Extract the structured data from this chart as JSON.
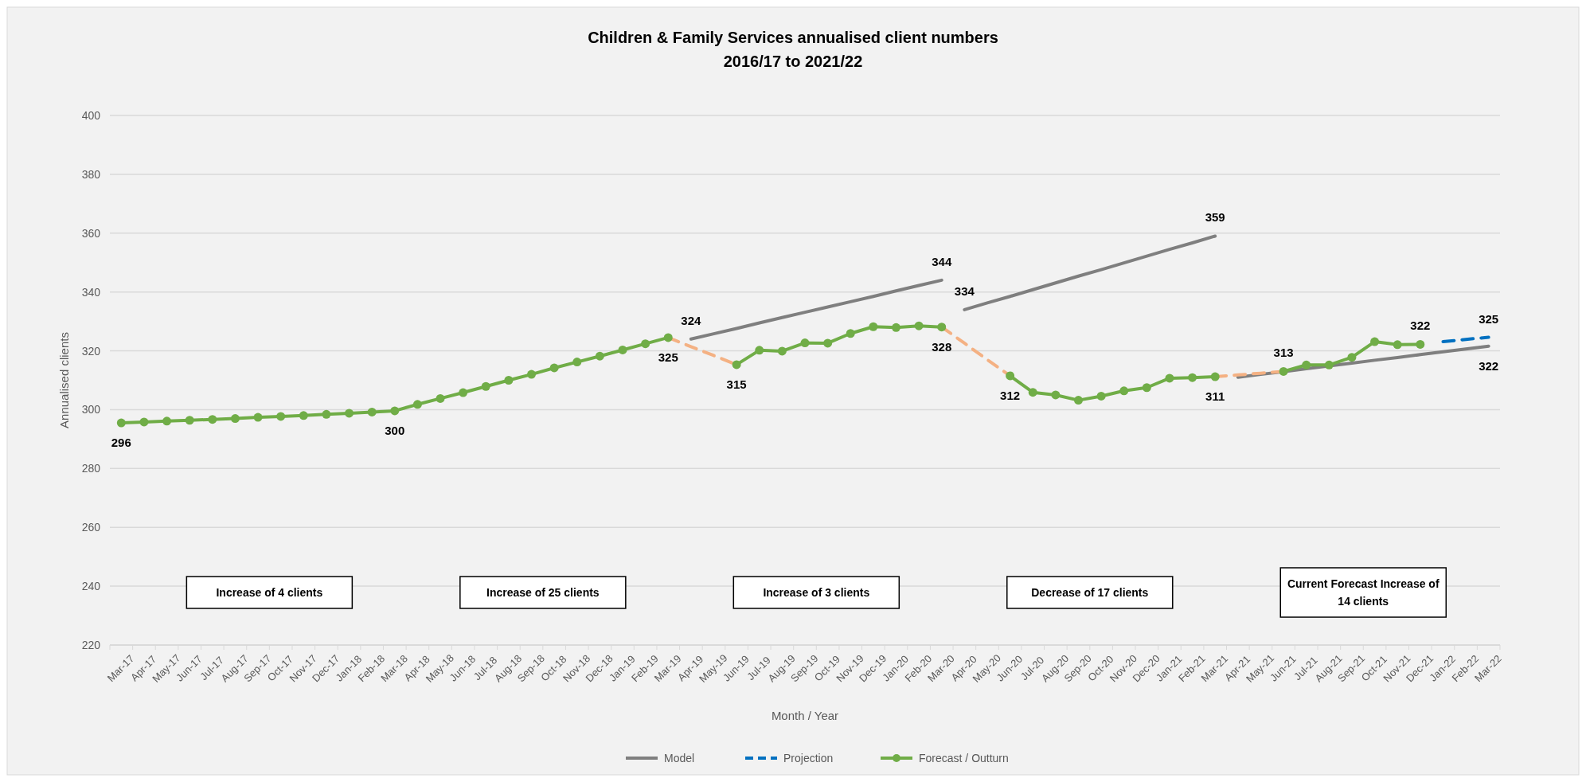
{
  "chart_data": {
    "type": "line",
    "title": "Children & Family Services annualised client numbers",
    "subtitle": "2016/17 to 2021/22",
    "xlabel": "Month / Year",
    "ylabel": "Annualised clients",
    "categories": [
      "Mar-17",
      "Apr-17",
      "May-17",
      "Jun-17",
      "Jul-17",
      "Aug-17",
      "Sep-17",
      "Oct-17",
      "Nov-17",
      "Dec-17",
      "Jan-18",
      "Feb-18",
      "Mar-18",
      "Apr-18",
      "May-18",
      "Jun-18",
      "Jul-18",
      "Aug-18",
      "Sep-18",
      "Oct-18",
      "Nov-18",
      "Dec-18",
      "Jan-19",
      "Feb-19",
      "Mar-19",
      "Apr-19",
      "May-19",
      "Jun-19",
      "Jul-19",
      "Aug-19",
      "Sep-19",
      "Oct-19",
      "Nov-19",
      "Dec-19",
      "Jan-20",
      "Feb-20",
      "Mar-20",
      "Apr-20",
      "May-20",
      "Jun-20",
      "Jul-20",
      "Aug-20",
      "Sep-20",
      "Oct-20",
      "Nov-20",
      "Dec-20",
      "Jan-21",
      "Feb-21",
      "Mar-21",
      "Apr-21",
      "May-21",
      "Jun-21",
      "Jul-21",
      "Aug-21",
      "Sep-21",
      "Oct-21",
      "Nov-21",
      "Dec-21",
      "Jan-22",
      "Feb-22",
      "Mar-22"
    ],
    "ylim": [
      220,
      400
    ],
    "yticks": [
      220,
      240,
      260,
      280,
      300,
      320,
      340,
      360,
      380,
      400
    ],
    "grid": "y",
    "legend": "bottom",
    "series": [
      {
        "name": "Model",
        "color": "#7f7f7f",
        "line_style": "solid",
        "marker": "none",
        "values": [
          null,
          null,
          null,
          null,
          null,
          null,
          null,
          null,
          null,
          null,
          null,
          null,
          null,
          null,
          null,
          null,
          null,
          null,
          null,
          null,
          null,
          null,
          null,
          null,
          null,
          324,
          325.8,
          327.6,
          329.5,
          331.3,
          333.1,
          334.9,
          336.7,
          338.5,
          340.4,
          342.2,
          344,
          null,
          null,
          null,
          null,
          null,
          null,
          null,
          null,
          null,
          null,
          null,
          null,
          null,
          null,
          null,
          null,
          null,
          null,
          null,
          null,
          null,
          null,
          null,
          null
        ],
        "value_labels": [
          null,
          null,
          null,
          null,
          null,
          null,
          null,
          null,
          null,
          null,
          null,
          null,
          null,
          null,
          null,
          null,
          null,
          null,
          null,
          null,
          null,
          null,
          null,
          null,
          null,
          "324",
          null,
          null,
          null,
          null,
          null,
          null,
          null,
          null,
          null,
          null,
          "344",
          null,
          null,
          null,
          null,
          null,
          null,
          null,
          null,
          null,
          null,
          null,
          null,
          null,
          null,
          null,
          null,
          null,
          null,
          null,
          null,
          null,
          null,
          null,
          null
        ]
      },
      {
        "color": "#7f7f7f",
        "line_style": "solid",
        "marker": "none",
        "values": [
          null,
          null,
          null,
          null,
          null,
          null,
          null,
          null,
          null,
          null,
          null,
          null,
          null,
          null,
          null,
          null,
          null,
          null,
          null,
          null,
          null,
          null,
          null,
          null,
          null,
          null,
          null,
          null,
          null,
          null,
          null,
          null,
          null,
          null,
          null,
          null,
          null,
          334,
          336.3,
          338.5,
          340.8,
          343.1,
          345.4,
          347.6,
          349.9,
          352.2,
          354.5,
          356.7,
          359,
          null,
          null,
          null,
          null,
          null,
          null,
          null,
          null,
          null,
          null,
          null,
          null
        ],
        "value_labels": [
          null,
          null,
          null,
          null,
          null,
          null,
          null,
          null,
          null,
          null,
          null,
          null,
          null,
          null,
          null,
          null,
          null,
          null,
          null,
          null,
          null,
          null,
          null,
          null,
          null,
          null,
          null,
          null,
          null,
          null,
          null,
          null,
          null,
          null,
          null,
          null,
          null,
          "334",
          null,
          null,
          null,
          null,
          null,
          null,
          null,
          null,
          null,
          null,
          "359",
          null,
          null,
          null,
          null,
          null,
          null,
          null,
          null,
          null,
          null,
          null,
          null
        ]
      },
      {
        "color": "#7f7f7f",
        "line_style": "solid",
        "marker": "none",
        "values": [
          null,
          null,
          null,
          null,
          null,
          null,
          null,
          null,
          null,
          null,
          null,
          null,
          null,
          null,
          null,
          null,
          null,
          null,
          null,
          null,
          null,
          null,
          null,
          null,
          null,
          null,
          null,
          null,
          null,
          null,
          null,
          null,
          null,
          null,
          null,
          null,
          null,
          null,
          null,
          null,
          null,
          null,
          null,
          null,
          null,
          null,
          null,
          null,
          null,
          311,
          312,
          312.9,
          313.9,
          314.9,
          315.8,
          316.8,
          317.7,
          318.7,
          319.7,
          320.6,
          321.6
        ],
        "value_labels": [
          null,
          null,
          null,
          null,
          null,
          null,
          null,
          null,
          null,
          null,
          null,
          null,
          null,
          null,
          null,
          null,
          null,
          null,
          null,
          null,
          null,
          null,
          null,
          null,
          null,
          null,
          null,
          null,
          null,
          null,
          null,
          null,
          null,
          null,
          null,
          null,
          null,
          null,
          null,
          null,
          null,
          null,
          null,
          null,
          null,
          null,
          null,
          null,
          null,
          null,
          null,
          null,
          null,
          null,
          null,
          null,
          null,
          null,
          null,
          null,
          "322"
        ]
      },
      {
        "name": "Projection",
        "color": "#0070c0",
        "line_style": "dashed",
        "marker": "none",
        "values": [
          null,
          null,
          null,
          null,
          null,
          null,
          null,
          null,
          null,
          null,
          null,
          null,
          null,
          null,
          null,
          null,
          null,
          null,
          null,
          null,
          null,
          null,
          null,
          null,
          null,
          null,
          null,
          null,
          null,
          null,
          null,
          null,
          null,
          null,
          null,
          null,
          null,
          null,
          null,
          null,
          null,
          null,
          null,
          null,
          null,
          null,
          null,
          null,
          null,
          null,
          null,
          null,
          null,
          null,
          null,
          null,
          null,
          null,
          323.1,
          323.9,
          324.6
        ],
        "value_labels": [
          null,
          null,
          null,
          null,
          null,
          null,
          null,
          null,
          null,
          null,
          null,
          null,
          null,
          null,
          null,
          null,
          null,
          null,
          null,
          null,
          null,
          null,
          null,
          null,
          null,
          null,
          null,
          null,
          null,
          null,
          null,
          null,
          null,
          null,
          null,
          null,
          null,
          null,
          null,
          null,
          null,
          null,
          null,
          null,
          null,
          null,
          null,
          null,
          null,
          null,
          null,
          null,
          null,
          null,
          null,
          null,
          null,
          null,
          null,
          null,
          "325"
        ]
      },
      {
        "color": "#f4b183",
        "line_style": "dashed",
        "marker": "none",
        "values": [
          null,
          null,
          null,
          null,
          null,
          null,
          null,
          null,
          null,
          null,
          null,
          null,
          null,
          null,
          null,
          null,
          null,
          null,
          null,
          null,
          null,
          null,
          null,
          null,
          324.5,
          321.4,
          318.4,
          315.3,
          null,
          null,
          null,
          null,
          null,
          null,
          null,
          null,
          null,
          null,
          null,
          null,
          null,
          null,
          null,
          null,
          null,
          null,
          null,
          null,
          null,
          null,
          null,
          null,
          null,
          null,
          null,
          null,
          null,
          null,
          null,
          null,
          null
        ]
      },
      {
        "color": "#f4b183",
        "line_style": "dashed",
        "marker": "none",
        "values": [
          null,
          null,
          null,
          null,
          null,
          null,
          null,
          null,
          null,
          null,
          null,
          null,
          null,
          null,
          null,
          null,
          null,
          null,
          null,
          null,
          null,
          null,
          null,
          null,
          null,
          null,
          null,
          null,
          null,
          null,
          null,
          null,
          null,
          null,
          null,
          null,
          328.1,
          322.6,
          317.0,
          311.5,
          null,
          null,
          null,
          null,
          null,
          null,
          null,
          null,
          null,
          null,
          null,
          null,
          null,
          null,
          null,
          null,
          null,
          null,
          null,
          null,
          null
        ]
      },
      {
        "color": "#f4b183",
        "line_style": "dashed",
        "marker": "none",
        "values": [
          null,
          null,
          null,
          null,
          null,
          null,
          null,
          null,
          null,
          null,
          null,
          null,
          null,
          null,
          null,
          null,
          null,
          null,
          null,
          null,
          null,
          null,
          null,
          null,
          null,
          null,
          null,
          null,
          null,
          null,
          null,
          null,
          null,
          null,
          null,
          null,
          null,
          null,
          null,
          null,
          null,
          null,
          null,
          null,
          null,
          null,
          null,
          null,
          311.2,
          311.8,
          312.4,
          313.0,
          null,
          null,
          null,
          null,
          null,
          null,
          null,
          null,
          null
        ]
      },
      {
        "name": "Forecast / Outturn",
        "color": "#70ad47",
        "line_style": "solid",
        "marker": "circle",
        "values": [
          295.5,
          295.8,
          296.1,
          296.4,
          296.7,
          297.0,
          297.4,
          297.7,
          298.0,
          298.4,
          298.8,
          299.2,
          299.6,
          301.8,
          303.8,
          305.8,
          307.9,
          310.0,
          312.0,
          314.2,
          316.2,
          318.2,
          320.3,
          322.4,
          324.5,
          null,
          null,
          315.3,
          320.2,
          319.9,
          322.7,
          322.6,
          325.9,
          328.2,
          327.9,
          328.5,
          328.1,
          null,
          null,
          311.5,
          305.9,
          305.0,
          303.2,
          304.6,
          306.4,
          307.5,
          310.7,
          310.9,
          311.2,
          null,
          null,
          313.0,
          315.2,
          315.2,
          317.8,
          323.1,
          322.1,
          322.2,
          null,
          null,
          null
        ],
        "value_labels": [
          "296",
          null,
          null,
          null,
          null,
          null,
          null,
          null,
          null,
          null,
          null,
          null,
          "300",
          null,
          null,
          null,
          null,
          null,
          null,
          null,
          null,
          null,
          null,
          null,
          "325",
          null,
          null,
          "315",
          null,
          null,
          null,
          null,
          null,
          null,
          null,
          null,
          "328",
          null,
          null,
          "312",
          null,
          null,
          null,
          null,
          null,
          null,
          null,
          null,
          "311",
          null,
          null,
          "313",
          null,
          null,
          null,
          null,
          null,
          "322",
          null,
          null,
          null
        ]
      }
    ],
    "annotations": [
      "Increase of 4 clients",
      "Increase of 25 clients",
      "Increase of 3 clients",
      "Decrease of 17 clients",
      "Current Forecast Increase of 14 clients"
    ]
  }
}
